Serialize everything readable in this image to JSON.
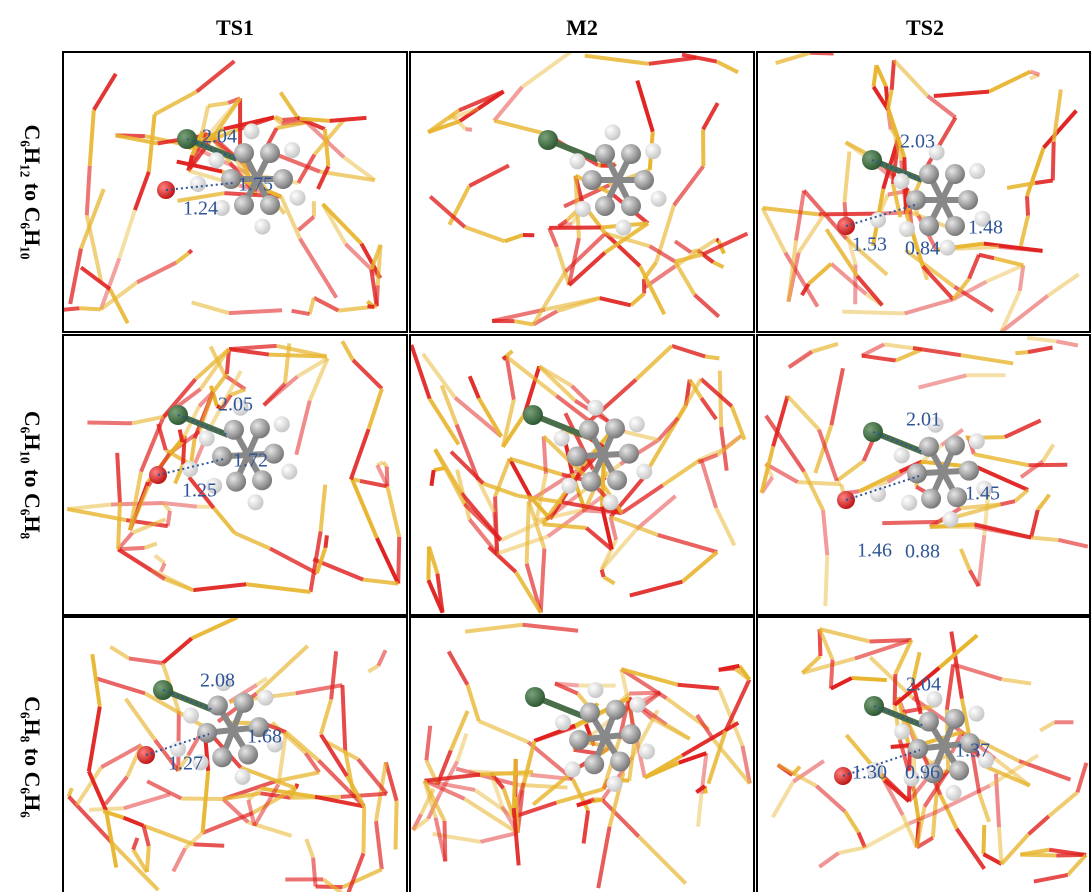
{
  "columns": [
    "TS1",
    "M2",
    "TS2"
  ],
  "rows": [
    {
      "label": "C₆H₁₂ to C₆H₁₀",
      "ts1": [
        "2.04",
        "1.75",
        "1.24"
      ],
      "ts2": [
        "2.03",
        "1.53",
        "0.84",
        "1.48"
      ]
    },
    {
      "label": "C₆H₁₀ to C₆H₈",
      "ts1": [
        "2.05",
        "1.72",
        "1.25"
      ],
      "ts2": [
        "2.01",
        "1.46",
        "0.88",
        "1.45"
      ]
    },
    {
      "label": "C₆H₈ to C₆H₆",
      "ts1": [
        "2.08",
        "1.68",
        "1.27"
      ],
      "ts2": [
        "2.04",
        "1.30",
        "0.96",
        "1.37"
      ]
    }
  ]
}
